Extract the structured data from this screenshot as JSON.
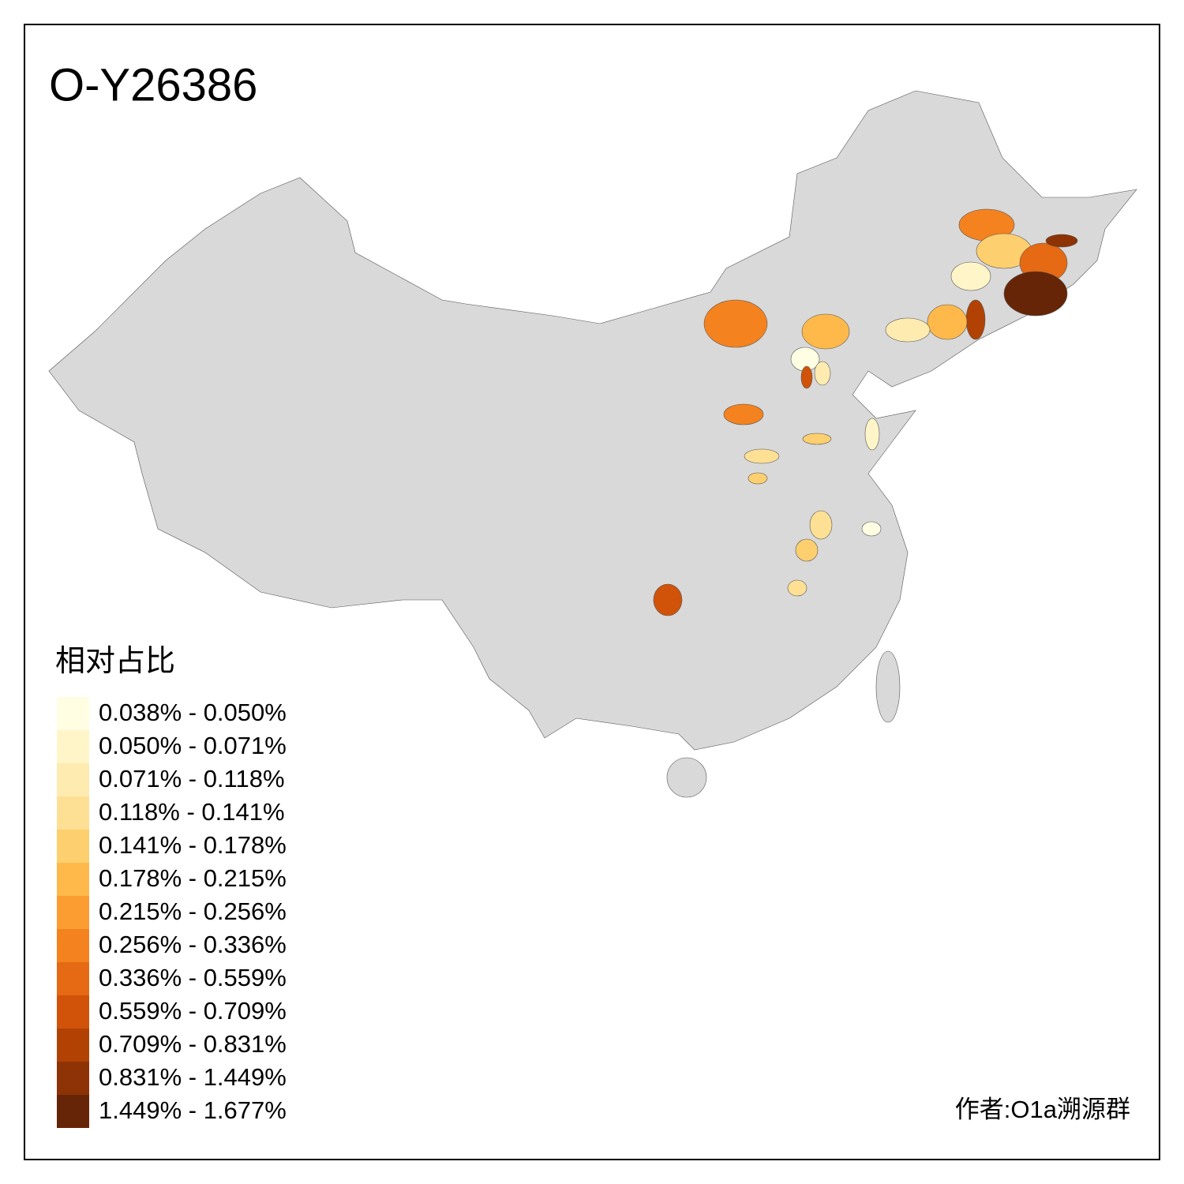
{
  "title": "O-Y26386",
  "legend": {
    "title": "相对占比",
    "items": [
      {
        "label": "0.038% - 0.050%",
        "color": "#FFFEE3"
      },
      {
        "label": "0.050% - 0.071%",
        "color": "#FFF5C8"
      },
      {
        "label": "0.071% - 0.118%",
        "color": "#FEEBB0"
      },
      {
        "label": "0.118% - 0.141%",
        "color": "#FEE095"
      },
      {
        "label": "0.141% - 0.178%",
        "color": "#FECF6E"
      },
      {
        "label": "0.178% - 0.215%",
        "color": "#FEB94A"
      },
      {
        "label": "0.215% - 0.256%",
        "color": "#FB9D31"
      },
      {
        "label": "0.256% - 0.336%",
        "color": "#F4821F"
      },
      {
        "label": "0.336% - 0.559%",
        "color": "#E56A13"
      },
      {
        "label": "0.559% - 0.709%",
        "color": "#D05309"
      },
      {
        "label": "0.709% - 0.831%",
        "color": "#B14204"
      },
      {
        "label": "0.831% - 1.449%",
        "color": "#8D3305"
      },
      {
        "label": "1.449% - 1.677%",
        "color": "#662506"
      }
    ]
  },
  "credit": "作者:O1a溯源群"
}
